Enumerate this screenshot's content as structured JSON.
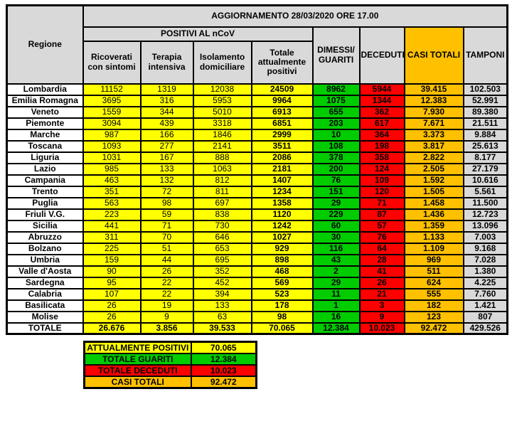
{
  "title": "AGGIORNAMENTO 28/03/2020 ORE 17.00",
  "colors": {
    "yellow": "#FFFF00",
    "green": "#00CC00",
    "red": "#FF0000",
    "orange": "#FFC000",
    "gray": "#D9D9D9",
    "white": "#FFFFFF"
  },
  "table": {
    "region_header": "Regione",
    "group_positivi": "POSITIVI AL nCoV",
    "columns": [
      "Ricoverati\ncon sintomi",
      "Terapia\nintensiva",
      "Isolamento\ndomiciliare",
      "Totale\nattualmente\npositivi",
      "DIMESSI/\nGUARITI",
      "DECEDUTI",
      "CASI TOTALI",
      "TAMPONI"
    ],
    "rows": [
      {
        "region": "Lombardia",
        "values": [
          "11152",
          "1319",
          "12038",
          "24509",
          "8962",
          "5944",
          "39.415",
          "102.503"
        ]
      },
      {
        "region": "Emilia Romagna",
        "values": [
          "3695",
          "316",
          "5953",
          "9964",
          "1075",
          "1344",
          "12.383",
          "52.991"
        ]
      },
      {
        "region": "Veneto",
        "values": [
          "1559",
          "344",
          "5010",
          "6913",
          "655",
          "362",
          "7.930",
          "89.380"
        ]
      },
      {
        "region": "Piemonte",
        "values": [
          "3094",
          "439",
          "3318",
          "6851",
          "203",
          "617",
          "7.671",
          "21.511"
        ]
      },
      {
        "region": "Marche",
        "values": [
          "987",
          "166",
          "1846",
          "2999",
          "10",
          "364",
          "3.373",
          "9.884"
        ]
      },
      {
        "region": "Toscana",
        "values": [
          "1093",
          "277",
          "2141",
          "3511",
          "108",
          "198",
          "3.817",
          "25.613"
        ]
      },
      {
        "region": "Liguria",
        "values": [
          "1031",
          "167",
          "888",
          "2086",
          "378",
          "358",
          "2.822",
          "8.177"
        ]
      },
      {
        "region": "Lazio",
        "values": [
          "985",
          "133",
          "1063",
          "2181",
          "200",
          "124",
          "2.505",
          "27.179"
        ]
      },
      {
        "region": "Campania",
        "values": [
          "463",
          "132",
          "812",
          "1407",
          "76",
          "109",
          "1.592",
          "10.616"
        ]
      },
      {
        "region": "Trento",
        "values": [
          "351",
          "72",
          "811",
          "1234",
          "151",
          "120",
          "1.505",
          "5.561"
        ]
      },
      {
        "region": "Puglia",
        "values": [
          "563",
          "98",
          "697",
          "1358",
          "29",
          "71",
          "1.458",
          "11.500"
        ]
      },
      {
        "region": "Friuli V.G.",
        "values": [
          "223",
          "59",
          "838",
          "1120",
          "229",
          "87",
          "1.436",
          "12.723"
        ]
      },
      {
        "region": "Sicilia",
        "values": [
          "441",
          "71",
          "730",
          "1242",
          "60",
          "57",
          "1.359",
          "13.096"
        ]
      },
      {
        "region": "Abruzzo",
        "values": [
          "311",
          "70",
          "646",
          "1027",
          "30",
          "76",
          "1.133",
          "7.003"
        ]
      },
      {
        "region": "Bolzano",
        "values": [
          "225",
          "51",
          "653",
          "929",
          "116",
          "64",
          "1.109",
          "9.168"
        ]
      },
      {
        "region": "Umbria",
        "values": [
          "159",
          "44",
          "695",
          "898",
          "43",
          "28",
          "969",
          "7.028"
        ]
      },
      {
        "region": "Valle d'Aosta",
        "values": [
          "90",
          "26",
          "352",
          "468",
          "2",
          "41",
          "511",
          "1.380"
        ]
      },
      {
        "region": "Sardegna",
        "values": [
          "95",
          "22",
          "452",
          "569",
          "29",
          "26",
          "624",
          "4.225"
        ]
      },
      {
        "region": "Calabria",
        "values": [
          "107",
          "22",
          "394",
          "523",
          "11",
          "21",
          "555",
          "7.760"
        ]
      },
      {
        "region": "Basilicata",
        "values": [
          "26",
          "19",
          "133",
          "178",
          "1",
          "3",
          "182",
          "1.421"
        ]
      },
      {
        "region": "Molise",
        "values": [
          "26",
          "9",
          "63",
          "98",
          "16",
          "9",
          "123",
          "807"
        ]
      }
    ],
    "total": {
      "region": "TOTALE",
      "values": [
        "26.676",
        "3.856",
        "39.533",
        "70.065",
        "12.384",
        "10.023",
        "92.472",
        "429.526"
      ]
    }
  },
  "summary": {
    "rows": [
      {
        "label": "ATTUALMENTE POSITIVI",
        "value": "70.065",
        "color": "#FFFF00"
      },
      {
        "label": "TOTALE GUARITI",
        "value": "12.384",
        "color": "#00CC00"
      },
      {
        "label": "TOTALE DECEDUTI",
        "value": "10.023",
        "color": "#FF0000"
      },
      {
        "label": "CASI TOTALI",
        "value": "92.472",
        "color": "#FFC000"
      }
    ]
  }
}
